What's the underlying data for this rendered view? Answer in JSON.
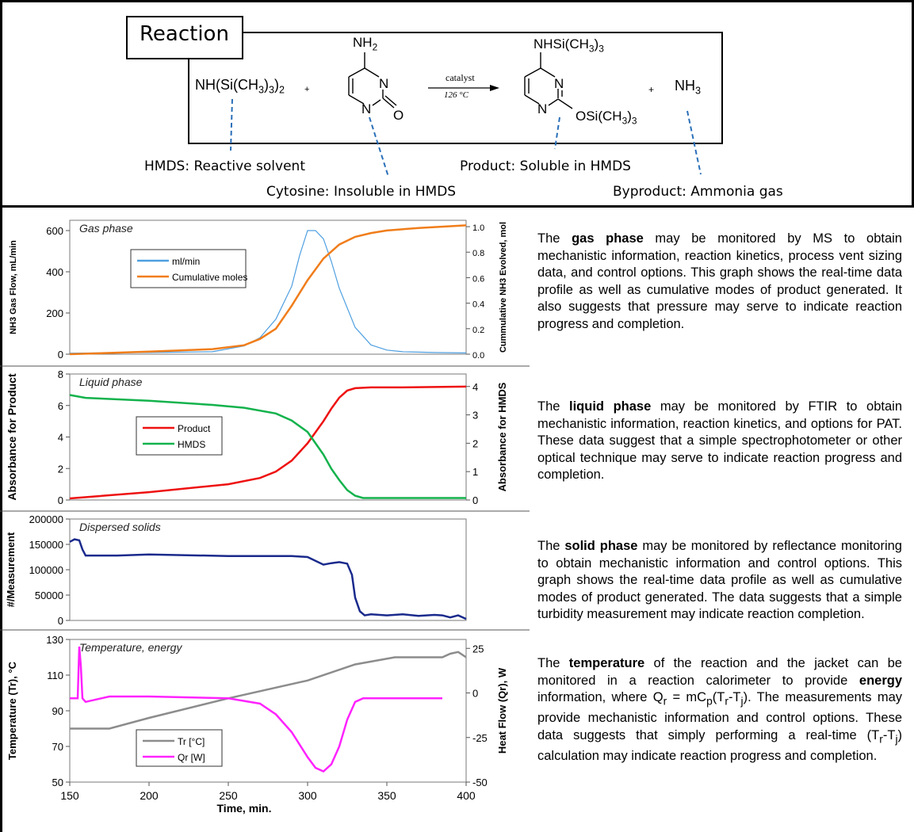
{
  "reaction": {
    "title": "Reaction",
    "hmds_formula": "NH(Si(CH3)3)2",
    "plus1": "+",
    "cytosine_nh2": "NH2",
    "ring_n1": "N",
    "ring_n2": "N",
    "ring_o": "O",
    "catalyst": "catalyst",
    "temperature": "126 °C",
    "product_top": "NHSi(CH3)3",
    "product_n1": "N",
    "product_n2": "N",
    "product_side": "OSi(CH3)3",
    "plus2": "+",
    "byproduct_formula": "NH3",
    "hmds_label": "HMDS: Reactive solvent",
    "cytosine_label": "Cytosine: Insoluble in HMDS",
    "product_label": "Product: Soluble in HMDS",
    "byproduct_label": "Byproduct: Ammonia gas"
  },
  "colors": {
    "blue": "#4f9fe0",
    "orange": "#f07d1a",
    "red": "#ee1111",
    "green": "#13b24c",
    "navy": "#1a2a8c",
    "gray": "#8c8c8c",
    "magenta": "#ff22ff"
  },
  "paragraphs": {
    "gas": {
      "pre": "The ",
      "bold": "gas phase",
      "post": " may be monitored by MS to obtain mechanistic information, reaction kinetics, process vent sizing data, and control options.  This graph shows the real-time data profile as well as cumulative modes of product generated.  It also suggests that pressure may serve to indicate reaction progress and completion."
    },
    "liquid": {
      "pre": "The ",
      "bold": "liquid phase",
      "post": " may be monitored by FTIR to obtain mechanistic information, reaction kinetics, and options for PAT.   These data suggest that a simple spectrophotometer or other optical technique may serve to indicate reaction progress and completion."
    },
    "solid": {
      "pre": "The ",
      "bold": "solid phase",
      "post": " may be monitored by reflectance monitoring to obtain mechanistic information and control options.  This graph shows the real-time data profile as well as cumulative modes of product generated. The data suggests that a simple turbidity measurement may indicate reaction completion."
    },
    "temp": {
      "pre": "The ",
      "bold": "temperature",
      "mid1": " of the reaction and the jacket can be monitored in a reaction calorimeter to provide ",
      "bold2": "energy",
      "mid2": " information, where Q",
      "sub_r": "r",
      "mid3": " = mC",
      "sub_p": "p",
      "mid4": "(T",
      "sub_r2": "r",
      "mid5": "-T",
      "sub_j": "j",
      "mid6": ").  The measurements may provide mechanistic information and control options.  These data suggests that simply performing a real-time  (T",
      "sub_r3": "r",
      "mid7": "-T",
      "sub_j2": "j",
      "post": ") calculation may indicate reaction progress and completion."
    }
  },
  "chart_data": [
    {
      "type": "line",
      "title": "Gas phase",
      "ylabel": "NH3 Gas Flow, mL/min",
      "y2label": "Cummulative NH3 Evolved, mol",
      "xlim": [
        150,
        400
      ],
      "ylim": [
        0,
        650
      ],
      "y2lim": [
        0,
        1.05
      ],
      "yticks": [
        "0",
        "200",
        "400",
        "600"
      ],
      "y2ticks": [
        "0.0",
        "0.2",
        "0.4",
        "0.6",
        "0.8",
        "1.0"
      ],
      "series": [
        {
          "name": "ml/min",
          "axis": "left",
          "color": "#4f9fe0",
          "x": [
            150,
            200,
            240,
            260,
            270,
            280,
            290,
            295,
            300,
            305,
            310,
            315,
            320,
            330,
            340,
            350,
            360,
            380,
            400
          ],
          "y": [
            5,
            8,
            12,
            40,
            80,
            170,
            330,
            480,
            600,
            600,
            560,
            450,
            320,
            130,
            45,
            20,
            12,
            8,
            6
          ]
        },
        {
          "name": "Cumulative moles",
          "axis": "right",
          "color": "#f07d1a",
          "x": [
            150,
            200,
            240,
            260,
            270,
            280,
            290,
            300,
            310,
            320,
            330,
            340,
            350,
            370,
            400
          ],
          "y": [
            0.0,
            0.02,
            0.04,
            0.07,
            0.12,
            0.2,
            0.38,
            0.58,
            0.75,
            0.86,
            0.92,
            0.95,
            0.97,
            0.99,
            1.01
          ]
        }
      ]
    },
    {
      "type": "line",
      "title": "Liquid phase",
      "ylabel": "Absorbance for Product",
      "y2label": "Absorbance for HMDS",
      "xlim": [
        150,
        400
      ],
      "ylim": [
        0,
        8
      ],
      "y2lim": [
        0,
        4.44
      ],
      "yticks": [
        "0",
        "2",
        "4",
        "6",
        "8"
      ],
      "y2ticks": [
        "0",
        "1",
        "2",
        "3",
        "4"
      ],
      "series": [
        {
          "name": "Product",
          "axis": "left",
          "color": "#ee1111",
          "x": [
            150,
            200,
            250,
            270,
            280,
            290,
            300,
            305,
            310,
            315,
            320,
            325,
            330,
            340,
            360,
            400
          ],
          "y": [
            0.1,
            0.5,
            1.0,
            1.4,
            1.8,
            2.5,
            3.6,
            4.3,
            5.0,
            5.8,
            6.5,
            6.95,
            7.1,
            7.15,
            7.15,
            7.2
          ]
        },
        {
          "name": "HMDS",
          "axis": "right",
          "color": "#13b24c",
          "x": [
            150,
            160,
            200,
            240,
            260,
            280,
            290,
            300,
            305,
            310,
            315,
            320,
            325,
            330,
            335,
            340,
            400
          ],
          "y": [
            3.7,
            3.6,
            3.5,
            3.35,
            3.25,
            3.05,
            2.8,
            2.4,
            2.0,
            1.6,
            1.1,
            0.7,
            0.35,
            0.15,
            0.07,
            0.07,
            0.07
          ]
        }
      ]
    },
    {
      "type": "line",
      "title": "Dispersed solids",
      "ylabel": "#/Measurement",
      "xlim": [
        150,
        400
      ],
      "ylim": [
        0,
        200000
      ],
      "yticks": [
        "0",
        "50000",
        "100000",
        "150000",
        "200000"
      ],
      "series": [
        {
          "name": "",
          "axis": "left",
          "color": "#1a2a8c",
          "x": [
            150,
            153,
            156,
            158,
            160,
            180,
            200,
            250,
            290,
            300,
            310,
            315,
            320,
            325,
            328,
            330,
            333,
            336,
            340,
            350,
            360,
            370,
            380,
            385,
            390,
            395,
            400
          ],
          "y": [
            155000,
            160000,
            158000,
            140000,
            128000,
            128000,
            130000,
            127000,
            127000,
            125000,
            110000,
            113000,
            115000,
            112000,
            90000,
            45000,
            18000,
            10000,
            12000,
            10000,
            12000,
            9000,
            11000,
            10000,
            6000,
            10000,
            3000
          ]
        }
      ]
    },
    {
      "type": "line",
      "title": "Temperature, energy",
      "xlabel": "Time, min.",
      "ylabel": "Temperature (Tr), °C",
      "y2label": "Heat Flow (Qr), W",
      "xlim": [
        150,
        400
      ],
      "ylim": [
        50,
        130
      ],
      "y2lim": [
        -50,
        30
      ],
      "xticks": [
        "150",
        "200",
        "250",
        "300",
        "350",
        "400"
      ],
      "yticks": [
        "50",
        "70",
        "90",
        "110",
        "130"
      ],
      "y2ticks": [
        "-50",
        "-25",
        "0",
        "25"
      ],
      "series": [
        {
          "name": "Tr [°C]",
          "axis": "left",
          "color": "#8c8c8c",
          "x": [
            150,
            175,
            200,
            250,
            300,
            330,
            355,
            385,
            390,
            395,
            400
          ],
          "y": [
            80,
            80,
            86,
            97,
            107,
            116,
            120,
            120,
            122,
            123,
            120
          ]
        },
        {
          "name": "Qr [W]",
          "axis": "right",
          "color": "#ff22ff",
          "x": [
            150,
            155,
            156,
            157,
            158,
            160,
            175,
            200,
            250,
            270,
            280,
            290,
            300,
            305,
            310,
            315,
            320,
            325,
            330,
            335,
            340,
            350,
            385
          ],
          "y": [
            -3,
            -3,
            26,
            15,
            -3,
            -5,
            -2,
            -2,
            -3,
            -6,
            -12,
            -22,
            -36,
            -42,
            -44,
            -40,
            -30,
            -15,
            -5,
            -3,
            -3,
            -3,
            -3
          ]
        }
      ]
    }
  ]
}
